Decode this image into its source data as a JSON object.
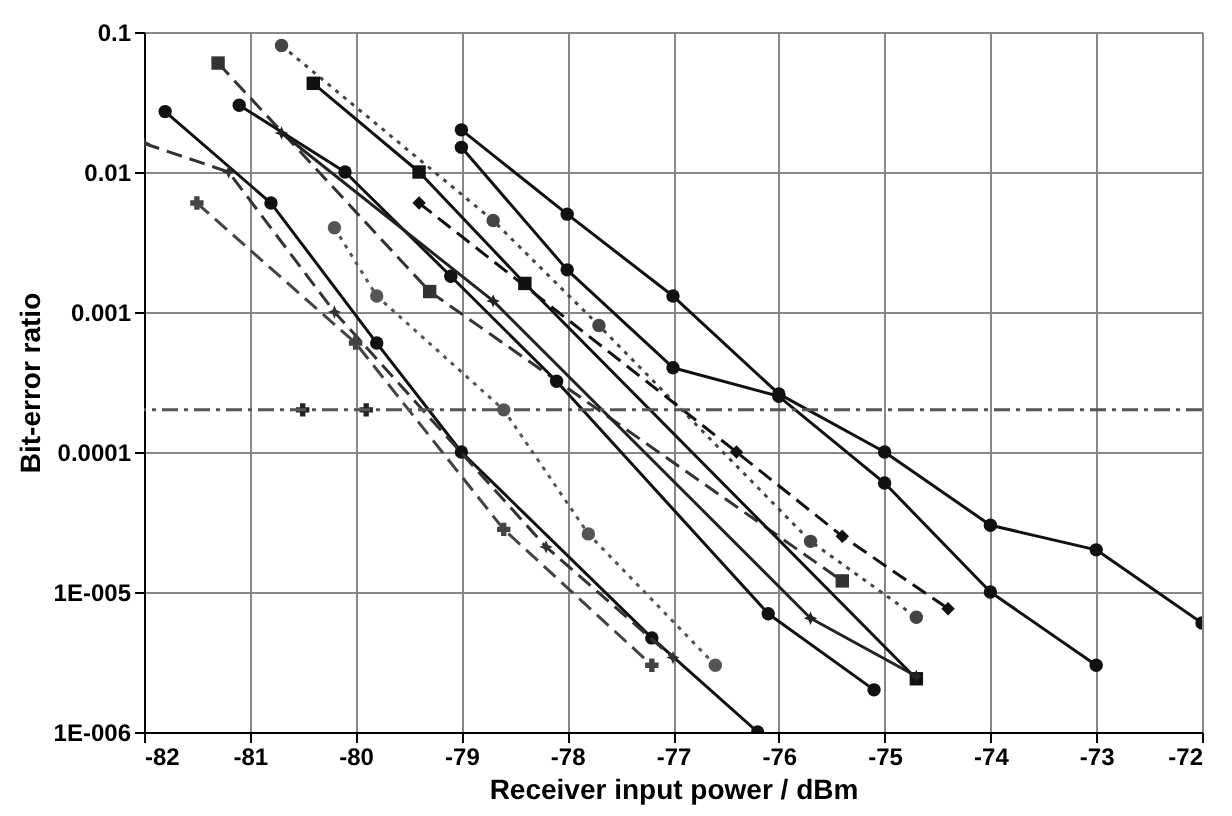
{
  "chart_data": {
    "type": "line",
    "xlabel": "Receiver input power / dBm",
    "ylabel": "Bit-error ratio",
    "log": true,
    "grid": true,
    "legend": false,
    "xlim": [
      -82,
      -72
    ],
    "xticks": [
      -82,
      -81,
      -80,
      -79,
      -78,
      -77,
      -76,
      -75,
      -74,
      -73,
      -72
    ],
    "ylim": [
      1e-06,
      0.1
    ],
    "yticks": [
      {
        "value": 0.1,
        "label": "0.1"
      },
      {
        "value": 0.01,
        "label": "0.01"
      },
      {
        "value": 0.001,
        "label": "0.001"
      },
      {
        "value": 0.0001,
        "label": "0.0001"
      },
      {
        "value": 1e-05,
        "label": "1E-005"
      },
      {
        "value": 1e-06,
        "label": "1E-006"
      }
    ],
    "ref_lines": [
      {
        "axis": "y",
        "value": 0.0002,
        "line_style": "dashed",
        "color": "#555555"
      }
    ],
    "series": [
      {
        "color": "#111111",
        "marker": "circle",
        "line_style": "solid",
        "x": [
          -79,
          -78,
          -77,
          -76,
          -75,
          -74,
          -73,
          -72
        ],
        "values": [
          0.02,
          0.005,
          0.0013,
          0.00026,
          0.0001,
          3e-05,
          2e-05,
          6e-06
        ]
      },
      {
        "color": "#111111",
        "marker": "circle",
        "line_style": "solid",
        "x": [
          -79,
          -78,
          -77,
          -76,
          -75,
          -74,
          -73
        ],
        "values": [
          0.015,
          0.002,
          0.0004,
          0.00025,
          6e-05,
          1e-05,
          3e-06
        ]
      },
      {
        "color": "#444444",
        "marker": "circle",
        "line_style": "dotted",
        "x": [
          -80.7,
          -78.7,
          -77.7,
          -75.7,
          -74.7
        ],
        "values": [
          0.08,
          0.0045,
          0.0008,
          2.3e-05,
          6.6e-06
        ]
      },
      {
        "color": "#111111",
        "marker": "diamond",
        "line_style": "dashed",
        "x": [
          -79.4,
          -76.4,
          -75.4,
          -74.4
        ],
        "values": [
          0.006,
          0.0001,
          2.5e-05,
          7.6e-06
        ]
      },
      {
        "color": "#333333",
        "marker": "square",
        "line_style": "dashed",
        "x": [
          -81.3,
          -79.3,
          -75.4
        ],
        "values": [
          0.06,
          0.0014,
          1.2e-05
        ]
      },
      {
        "color": "#111111",
        "marker": "square",
        "line_style": "solid",
        "x": [
          -80.4,
          -79.4,
          -78.4,
          -74.7
        ],
        "values": [
          0.043,
          0.01,
          0.0016,
          2.4e-06
        ]
      },
      {
        "color": "#111111",
        "marker": "circle",
        "line_style": "solid",
        "x": [
          -81.1,
          -80.1,
          -79.1,
          -78.1,
          -76.1,
          -75.1
        ],
        "values": [
          0.03,
          0.01,
          0.0018,
          0.00032,
          7e-06,
          2e-06
        ]
      },
      {
        "color": "#222222",
        "marker": "star",
        "line_style": "solid",
        "x": [
          -80.7,
          -78.7,
          -75.7,
          -74.7
        ],
        "values": [
          0.019,
          0.0012,
          6.5e-06,
          2.5e-06
        ]
      },
      {
        "color": "#111111",
        "marker": "circle",
        "line_style": "solid",
        "x": [
          -81.8,
          -80.8,
          -79.8,
          -79,
          -77.2,
          -76.2
        ],
        "values": [
          0.027,
          0.006,
          0.0006,
          0.0001,
          4.7e-06,
          1e-06
        ]
      },
      {
        "color": "#333333",
        "marker": "star",
        "line_style": "dashed",
        "x": [
          -82,
          -81.2,
          -80.2,
          -78.2,
          -77
        ],
        "values": [
          0.016,
          0.01,
          0.001,
          2.1e-05,
          3.4e-06
        ]
      },
      {
        "color": "#444444",
        "marker": "cross",
        "line_style": "dashed",
        "x": [
          -81.5,
          -80,
          -78.6,
          -77.2
        ],
        "values": [
          0.006,
          0.0006,
          2.8e-05,
          3e-06
        ]
      },
      {
        "color": "#555555",
        "marker": "circle",
        "line_style": "dotted",
        "x": [
          -80.2,
          -79.8,
          -78.6,
          -77.8,
          -76.6
        ],
        "values": [
          0.004,
          0.0013,
          0.0002,
          2.6e-05,
          3e-06
        ]
      },
      {
        "type": "scatter",
        "color": "#222222",
        "marker": "cross",
        "x": [
          -80.5,
          -79.9
        ],
        "values": [
          0.0002,
          0.0002
        ]
      }
    ]
  }
}
